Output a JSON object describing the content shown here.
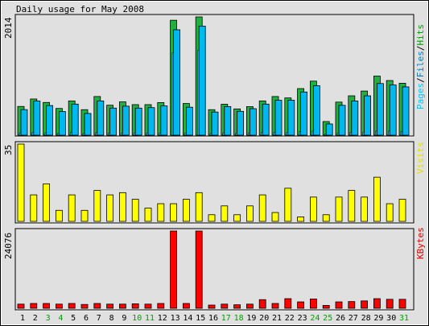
{
  "chart_data": {
    "type": "bar",
    "title": "Daily usage for May 2008",
    "categories": [
      "1",
      "2",
      "3",
      "4",
      "5",
      "6",
      "7",
      "8",
      "9",
      "10",
      "11",
      "12",
      "13",
      "14",
      "15",
      "16",
      "17",
      "18",
      "19",
      "20",
      "21",
      "22",
      "23",
      "24",
      "25",
      "26",
      "27",
      "28",
      "29",
      "30",
      "31"
    ],
    "weekend_days": [
      "3",
      "4",
      "10",
      "11",
      "17",
      "18",
      "24",
      "25",
      "31"
    ],
    "colors": {
      "hits": "#20b040",
      "files": "#00b8f0",
      "pages": "#4090c0",
      "visits": "#ffff00",
      "kbytes": "#ff0000",
      "label_hits": "#00a000",
      "label_files": "#0080c0",
      "label_pages": "#00c8ff",
      "label_visits": "#e0e000",
      "label_kbytes": "#e00000",
      "weekend_tick": "#00a000",
      "weekday_tick": "#000000"
    },
    "panels": [
      {
        "id": "hits",
        "ymax": 2014,
        "ymax_label": "2014",
        "legend": [
          "Pages",
          "Files",
          "Hits"
        ],
        "series": [
          {
            "name": "Hits",
            "values": [
              490,
              617,
              558,
              456,
              584,
              435,
              659,
              511,
              568,
              521,
              521,
              556,
              1957,
              540,
              2014,
              435,
              528,
              448,
              487,
              584,
              659,
              635,
              794,
              921,
              233,
              564,
              671,
              752,
              1007,
              931,
              885
            ]
          },
          {
            "name": "Files",
            "values": [
              436,
              582,
              505,
              403,
              530,
              371,
              584,
              462,
              495,
              462,
              470,
              500,
              1795,
              477,
              1857,
              395,
              488,
              407,
              452,
              530,
              595,
              596,
              736,
              842,
              192,
              509,
              583,
              671,
              880,
              856,
              823
            ]
          },
          {
            "name": "Pages",
            "values": [
              40,
              50,
              40,
              35,
              45,
              30,
              45,
              40,
              40,
              40,
              40,
              40,
              1400,
              40,
              1450,
              30,
              40,
              35,
              40,
              45,
              50,
              45,
              60,
              70,
              20,
              40,
              50,
              55,
              70,
              70,
              65
            ]
          }
        ]
      },
      {
        "id": "visits",
        "ymax": 35,
        "ymax_label": "35",
        "legend": [
          "Visits"
        ],
        "series": [
          {
            "name": "Visits",
            "values": [
              35,
              12,
              17,
              5,
              12,
              5,
              14,
              12,
              13,
              10,
              6,
              8,
              8,
              10,
              13,
              3,
              7,
              3,
              7,
              12,
              4,
              15,
              2,
              11,
              3,
              11,
              14,
              11,
              20,
              8,
              10
            ]
          }
        ]
      },
      {
        "id": "kbytes",
        "ymax": 24076,
        "ymax_label": "24076",
        "legend": [
          "KBytes"
        ],
        "series": [
          {
            "name": "KBytes",
            "values": [
              1300,
              1500,
              1500,
              1300,
              1500,
              1200,
              1500,
              1300,
              1300,
              1400,
              1300,
              1500,
              24076,
              1500,
              24076,
              1000,
              1300,
              1100,
              1300,
              2700,
              1500,
              3000,
              2000,
              2900,
              900,
              2000,
              2100,
              2300,
              3000,
              2800,
              2800
            ]
          }
        ]
      }
    ]
  }
}
